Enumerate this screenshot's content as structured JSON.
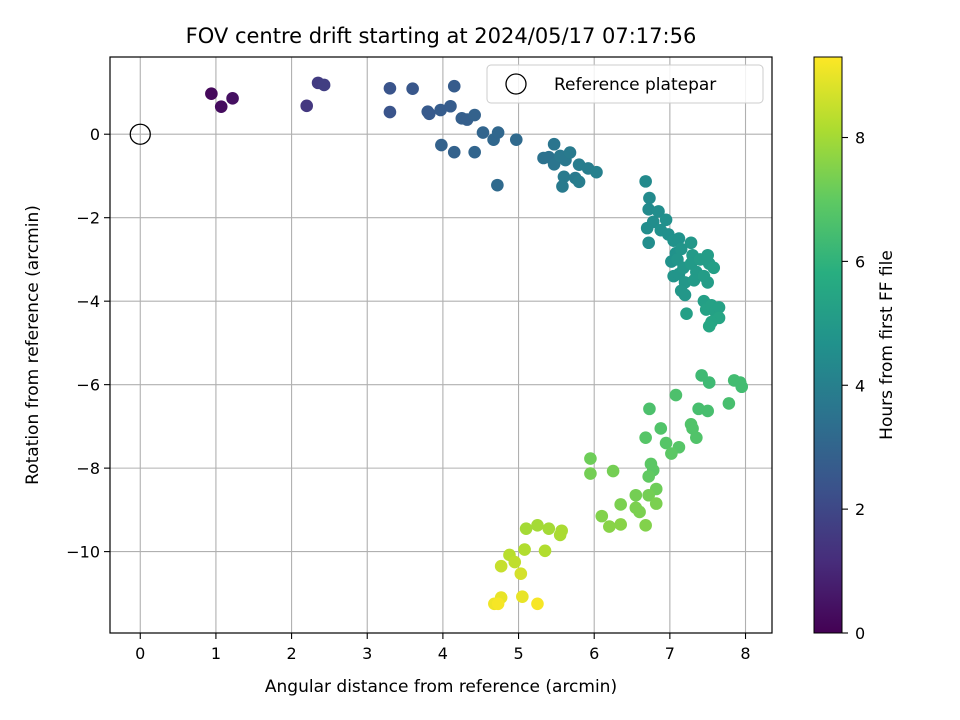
{
  "chart_data": {
    "type": "scatter",
    "title": "FOV centre drift starting at 2024/05/17 07:17:56",
    "xlabel": "Angular distance from reference (arcmin)",
    "ylabel": "Rotation from reference (arcmin)",
    "xlim": [
      -0.4,
      8.35
    ],
    "ylim": [
      -11.95,
      1.85
    ],
    "xticks": [
      0,
      1,
      2,
      3,
      4,
      5,
      6,
      7,
      8
    ],
    "yticks": [
      0,
      -2,
      -4,
      -6,
      -8,
      -10
    ],
    "grid": true,
    "legend": {
      "entries": [
        "Reference platepar"
      ],
      "placement": "top-right"
    },
    "reference_point": {
      "x": 0,
      "y": 0
    },
    "colorbar": {
      "label": "Hours from first FF file",
      "colormap": "viridis",
      "range": [
        0,
        9.3
      ],
      "ticks": [
        0,
        2,
        4,
        6,
        8
      ]
    },
    "points": [
      {
        "x": 0.94,
        "y": 0.97,
        "h": 0.2
      },
      {
        "x": 1.07,
        "y": 0.66,
        "h": 0.3
      },
      {
        "x": 1.22,
        "y": 0.86,
        "h": 0.4
      },
      {
        "x": 2.2,
        "y": 0.68,
        "h": 1.5
      },
      {
        "x": 2.35,
        "y": 1.23,
        "h": 1.6
      },
      {
        "x": 2.43,
        "y": 1.18,
        "h": 1.7
      },
      {
        "x": 3.3,
        "y": 1.1,
        "h": 2.4
      },
      {
        "x": 3.3,
        "y": 0.53,
        "h": 2.4
      },
      {
        "x": 3.6,
        "y": 1.09,
        "h": 2.5
      },
      {
        "x": 3.8,
        "y": 0.54,
        "h": 2.6
      },
      {
        "x": 3.82,
        "y": 0.49,
        "h": 2.6
      },
      {
        "x": 3.97,
        "y": 0.58,
        "h": 2.7
      },
      {
        "x": 4.1,
        "y": 0.67,
        "h": 2.7
      },
      {
        "x": 4.15,
        "y": 1.15,
        "h": 2.7
      },
      {
        "x": 4.25,
        "y": 0.38,
        "h": 2.8
      },
      {
        "x": 4.32,
        "y": 0.35,
        "h": 2.8
      },
      {
        "x": 4.42,
        "y": 0.46,
        "h": 2.9
      },
      {
        "x": 3.98,
        "y": -0.26,
        "h": 2.9
      },
      {
        "x": 4.15,
        "y": -0.43,
        "h": 2.9
      },
      {
        "x": 4.42,
        "y": -0.43,
        "h": 3.0
      },
      {
        "x": 4.53,
        "y": 0.04,
        "h": 3.0
      },
      {
        "x": 4.67,
        "y": -0.13,
        "h": 3.1
      },
      {
        "x": 4.73,
        "y": 0.04,
        "h": 3.1
      },
      {
        "x": 4.97,
        "y": -0.13,
        "h": 3.2
      },
      {
        "x": 4.72,
        "y": -1.22,
        "h": 3.2
      },
      {
        "x": 5.33,
        "y": -0.57,
        "h": 3.5
      },
      {
        "x": 5.4,
        "y": -0.55,
        "h": 3.5
      },
      {
        "x": 5.47,
        "y": -0.24,
        "h": 3.6
      },
      {
        "x": 5.47,
        "y": -0.72,
        "h": 3.6
      },
      {
        "x": 5.55,
        "y": -0.52,
        "h": 3.7
      },
      {
        "x": 5.62,
        "y": -0.62,
        "h": 3.7
      },
      {
        "x": 5.68,
        "y": -0.44,
        "h": 3.8
      },
      {
        "x": 5.6,
        "y": -1.02,
        "h": 3.8
      },
      {
        "x": 5.58,
        "y": -1.25,
        "h": 3.8
      },
      {
        "x": 5.75,
        "y": -1.05,
        "h": 3.8
      },
      {
        "x": 5.8,
        "y": -1.14,
        "h": 3.9
      },
      {
        "x": 5.8,
        "y": -0.73,
        "h": 3.9
      },
      {
        "x": 5.92,
        "y": -0.82,
        "h": 3.9
      },
      {
        "x": 6.03,
        "y": -0.91,
        "h": 4.0
      },
      {
        "x": 6.68,
        "y": -1.13,
        "h": 4.4
      },
      {
        "x": 6.73,
        "y": -1.53,
        "h": 4.4
      },
      {
        "x": 6.72,
        "y": -1.8,
        "h": 4.4
      },
      {
        "x": 6.7,
        "y": -2.25,
        "h": 4.5
      },
      {
        "x": 6.78,
        "y": -2.1,
        "h": 4.5
      },
      {
        "x": 6.72,
        "y": -2.6,
        "h": 4.5
      },
      {
        "x": 6.85,
        "y": -1.85,
        "h": 4.5
      },
      {
        "x": 6.88,
        "y": -2.3,
        "h": 4.6
      },
      {
        "x": 6.95,
        "y": -2.05,
        "h": 4.6
      },
      {
        "x": 6.98,
        "y": -2.4,
        "h": 4.6
      },
      {
        "x": 7.05,
        "y": -2.55,
        "h": 4.7
      },
      {
        "x": 7.12,
        "y": -2.5,
        "h": 4.7
      },
      {
        "x": 7.08,
        "y": -2.85,
        "h": 4.7
      },
      {
        "x": 7.02,
        "y": -3.05,
        "h": 4.7
      },
      {
        "x": 7.1,
        "y": -3.0,
        "h": 4.8
      },
      {
        "x": 7.15,
        "y": -2.75,
        "h": 4.8
      },
      {
        "x": 7.05,
        "y": -3.4,
        "h": 4.8
      },
      {
        "x": 7.12,
        "y": -3.35,
        "h": 4.8
      },
      {
        "x": 7.18,
        "y": -3.2,
        "h": 4.9
      },
      {
        "x": 7.2,
        "y": -3.55,
        "h": 4.9
      },
      {
        "x": 7.15,
        "y": -3.75,
        "h": 4.9
      },
      {
        "x": 7.2,
        "y": -3.85,
        "h": 4.9
      },
      {
        "x": 7.28,
        "y": -2.6,
        "h": 4.9
      },
      {
        "x": 7.3,
        "y": -2.9,
        "h": 5.0
      },
      {
        "x": 7.28,
        "y": -3.1,
        "h": 5.0
      },
      {
        "x": 7.35,
        "y": -3.3,
        "h": 5.0
      },
      {
        "x": 7.32,
        "y": -3.5,
        "h": 5.0
      },
      {
        "x": 7.4,
        "y": -3.0,
        "h": 5.1
      },
      {
        "x": 7.45,
        "y": -3.4,
        "h": 5.1
      },
      {
        "x": 7.5,
        "y": -2.9,
        "h": 5.1
      },
      {
        "x": 7.5,
        "y": -3.55,
        "h": 5.1
      },
      {
        "x": 7.52,
        "y": -3.1,
        "h": 5.1
      },
      {
        "x": 7.58,
        "y": -3.2,
        "h": 5.2
      },
      {
        "x": 7.22,
        "y": -4.3,
        "h": 5.2
      },
      {
        "x": 7.45,
        "y": -4.0,
        "h": 5.2
      },
      {
        "x": 7.48,
        "y": -4.2,
        "h": 5.3
      },
      {
        "x": 7.55,
        "y": -4.1,
        "h": 5.3
      },
      {
        "x": 7.6,
        "y": -4.25,
        "h": 5.3
      },
      {
        "x": 7.65,
        "y": -4.15,
        "h": 5.3
      },
      {
        "x": 7.65,
        "y": -4.4,
        "h": 5.4
      },
      {
        "x": 7.55,
        "y": -4.5,
        "h": 5.4
      },
      {
        "x": 7.52,
        "y": -4.6,
        "h": 5.5
      },
      {
        "x": 7.42,
        "y": -5.78,
        "h": 6.3
      },
      {
        "x": 7.52,
        "y": -5.95,
        "h": 6.3
      },
      {
        "x": 7.85,
        "y": -5.9,
        "h": 6.4
      },
      {
        "x": 7.93,
        "y": -5.95,
        "h": 6.4
      },
      {
        "x": 7.95,
        "y": -6.05,
        "h": 6.4
      },
      {
        "x": 7.78,
        "y": -6.45,
        "h": 6.5
      },
      {
        "x": 7.5,
        "y": -6.63,
        "h": 6.5
      },
      {
        "x": 7.38,
        "y": -6.58,
        "h": 6.5
      },
      {
        "x": 7.08,
        "y": -6.25,
        "h": 6.6
      },
      {
        "x": 6.73,
        "y": -6.58,
        "h": 6.6
      },
      {
        "x": 7.28,
        "y": -6.95,
        "h": 6.7
      },
      {
        "x": 7.3,
        "y": -7.05,
        "h": 6.7
      },
      {
        "x": 7.35,
        "y": -7.27,
        "h": 6.7
      },
      {
        "x": 6.88,
        "y": -7.05,
        "h": 6.7
      },
      {
        "x": 6.68,
        "y": -7.27,
        "h": 6.8
      },
      {
        "x": 6.95,
        "y": -7.4,
        "h": 6.8
      },
      {
        "x": 7.12,
        "y": -7.5,
        "h": 6.8
      },
      {
        "x": 7.02,
        "y": -7.65,
        "h": 6.9
      },
      {
        "x": 6.75,
        "y": -7.9,
        "h": 6.9
      },
      {
        "x": 6.78,
        "y": -8.05,
        "h": 6.9
      },
      {
        "x": 6.72,
        "y": -8.2,
        "h": 7.0
      },
      {
        "x": 5.95,
        "y": -7.77,
        "h": 7.2
      },
      {
        "x": 5.95,
        "y": -8.13,
        "h": 7.3
      },
      {
        "x": 6.25,
        "y": -8.07,
        "h": 7.3
      },
      {
        "x": 6.82,
        "y": -8.5,
        "h": 7.2
      },
      {
        "x": 6.55,
        "y": -8.65,
        "h": 7.3
      },
      {
        "x": 6.72,
        "y": -8.65,
        "h": 7.3
      },
      {
        "x": 6.82,
        "y": -8.85,
        "h": 7.4
      },
      {
        "x": 6.35,
        "y": -8.87,
        "h": 7.4
      },
      {
        "x": 6.55,
        "y": -8.95,
        "h": 7.4
      },
      {
        "x": 6.6,
        "y": -9.05,
        "h": 7.4
      },
      {
        "x": 6.1,
        "y": -9.15,
        "h": 7.5
      },
      {
        "x": 6.2,
        "y": -9.4,
        "h": 7.6
      },
      {
        "x": 6.35,
        "y": -9.35,
        "h": 7.6
      },
      {
        "x": 6.68,
        "y": -9.37,
        "h": 7.5
      },
      {
        "x": 5.1,
        "y": -9.45,
        "h": 8.0
      },
      {
        "x": 5.25,
        "y": -9.37,
        "h": 8.0
      },
      {
        "x": 5.4,
        "y": -9.45,
        "h": 8.0
      },
      {
        "x": 5.55,
        "y": -9.6,
        "h": 8.1
      },
      {
        "x": 5.57,
        "y": -9.5,
        "h": 8.1
      },
      {
        "x": 5.08,
        "y": -9.95,
        "h": 8.2
      },
      {
        "x": 5.35,
        "y": -9.98,
        "h": 8.2
      },
      {
        "x": 4.88,
        "y": -10.08,
        "h": 8.3
      },
      {
        "x": 4.95,
        "y": -10.25,
        "h": 8.4
      },
      {
        "x": 4.77,
        "y": -10.35,
        "h": 8.5
      },
      {
        "x": 5.03,
        "y": -10.53,
        "h": 8.7
      },
      {
        "x": 4.77,
        "y": -11.1,
        "h": 9.0
      },
      {
        "x": 5.05,
        "y": -11.08,
        "h": 9.0
      },
      {
        "x": 4.68,
        "y": -11.25,
        "h": 9.1
      },
      {
        "x": 4.73,
        "y": -11.25,
        "h": 9.2
      },
      {
        "x": 5.25,
        "y": -11.25,
        "h": 9.2
      }
    ]
  }
}
